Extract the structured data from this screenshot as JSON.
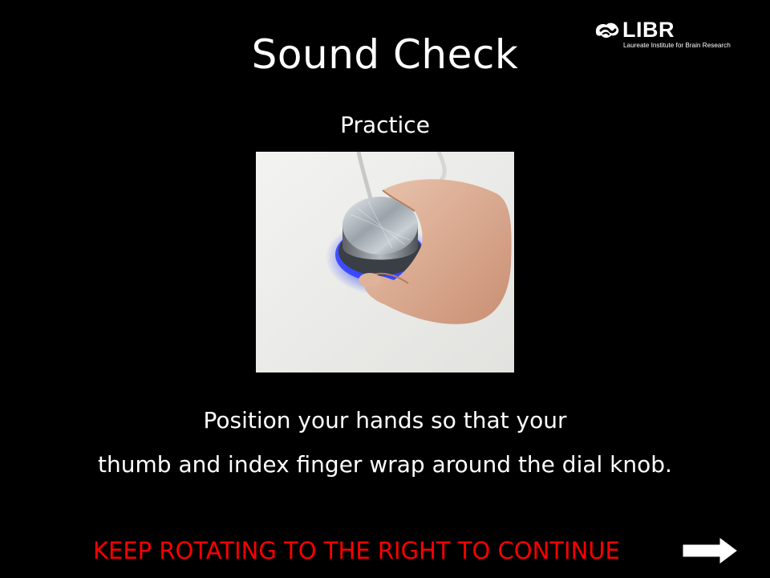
{
  "slide": {
    "title": "Sound Check",
    "subtitle": "Practice",
    "instruction_line1": "Position your hands so that your",
    "instruction_line2": "thumb and index finger wrap around the dial knob.",
    "continue_prompt": "KEEP ROTATING TO THE RIGHT TO CONTINUE"
  },
  "logo": {
    "wordmark": "LIBR",
    "tagline": "Laureate Institute for Brain Research"
  },
  "photo": {
    "subject": "hand gripping illuminated dial knob"
  },
  "icons": {
    "logo_mark": "libr-brain-mark-icon",
    "continue_arrow": "right-arrow-icon"
  },
  "colors": {
    "background": "#000000",
    "text": "#ffffff",
    "prompt": "#ff0000",
    "knob_glow": "#2a4dff"
  }
}
